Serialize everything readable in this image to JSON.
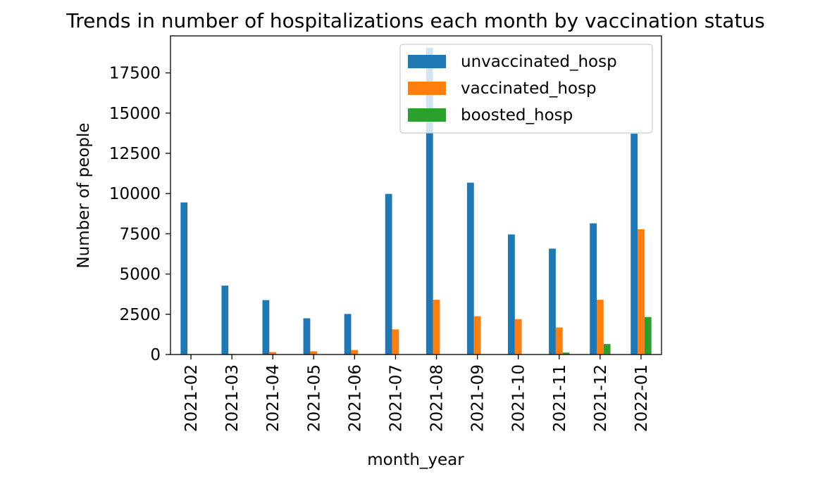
{
  "chart_data": {
    "type": "bar",
    "title": "Trends in number of hospitalizations each month by vaccination status",
    "xlabel": "month_year",
    "ylabel": "Number of people",
    "categories": [
      "2021-02",
      "2021-03",
      "2021-04",
      "2021-05",
      "2021-06",
      "2021-07",
      "2021-08",
      "2021-09",
      "2021-10",
      "2021-11",
      "2021-12",
      "2022-01"
    ],
    "series": [
      {
        "name": "unvaccinated_hosp",
        "color": "#1f77b4",
        "values": [
          9450,
          4280,
          3380,
          2250,
          2520,
          9980,
          19050,
          10680,
          7460,
          6580,
          8150,
          13720
        ]
      },
      {
        "name": "vaccinated_hosp",
        "color": "#ff7f0e",
        "values": [
          5,
          40,
          150,
          200,
          280,
          1560,
          3400,
          2380,
          2200,
          1680,
          3400,
          7780
        ]
      },
      {
        "name": "boosted_hosp",
        "color": "#2ca02c",
        "values": [
          0,
          0,
          0,
          0,
          0,
          0,
          0,
          0,
          0,
          120,
          650,
          2330
        ]
      }
    ],
    "ylim": [
      0,
      19800
    ],
    "yticks": [
      0,
      2500,
      5000,
      7500,
      10000,
      12500,
      15000,
      17500
    ],
    "ytick_labels": [
      "0",
      "2500",
      "5000",
      "7500",
      "10000",
      "12500",
      "15000",
      "17500"
    ],
    "legend_position": "top-right",
    "grid": false
  }
}
